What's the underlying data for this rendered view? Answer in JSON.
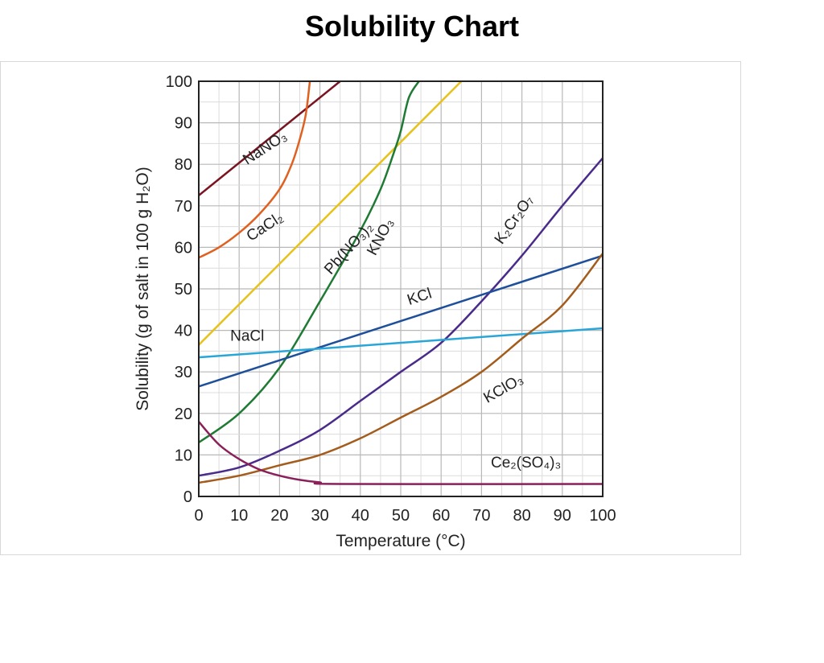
{
  "title": "Solubility Chart",
  "chart_data": {
    "type": "line",
    "xlabel": "Temperature (°C)",
    "ylabel": "Solubility (g of salt in 100 g H₂O)",
    "xlim": [
      0,
      100
    ],
    "ylim": [
      0,
      100
    ],
    "x_ticks": [
      "0",
      "10",
      "20",
      "30",
      "40",
      "50",
      "60",
      "70",
      "80",
      "90",
      "100"
    ],
    "y_ticks": [
      "0",
      "10",
      "20",
      "30",
      "40",
      "50",
      "60",
      "70",
      "80",
      "90",
      "100"
    ],
    "grid": true,
    "series": [
      {
        "name": "NaNO₃",
        "color": "#7a1420",
        "points": [
          [
            0,
            72.5
          ],
          [
            35,
            100
          ]
        ],
        "label": "NaNO₃",
        "label_at": [
          17,
          83
        ],
        "label_angle": -33
      },
      {
        "name": "CaCl₂",
        "color": "#e06020",
        "points": [
          [
            0,
            57.5
          ],
          [
            5,
            60
          ],
          [
            10,
            63.5
          ],
          [
            15,
            68
          ],
          [
            20,
            74
          ],
          [
            23,
            80
          ],
          [
            25,
            86
          ],
          [
            26.5,
            92
          ],
          [
            27.5,
            100
          ]
        ],
        "label": "CaCl₂",
        "label_at": [
          17,
          64
        ],
        "label_angle": -33
      },
      {
        "name": "Pb(NO₃)₂",
        "color": "#e8c21a",
        "points": [
          [
            0,
            36.5
          ],
          [
            65,
            100
          ]
        ],
        "label": "Pb(NO₃)₂",
        "label_at": [
          38,
          59
        ],
        "label_angle": -48
      },
      {
        "name": "KNO₃",
        "color": "#1f7a34",
        "points": [
          [
            0,
            13
          ],
          [
            10,
            20
          ],
          [
            20,
            31
          ],
          [
            30,
            47
          ],
          [
            40,
            64
          ],
          [
            45,
            74
          ],
          [
            48,
            82
          ],
          [
            50,
            88
          ],
          [
            52,
            96
          ],
          [
            54.5,
            100
          ]
        ],
        "label": "KNO₃",
        "label_at": [
          46,
          62
        ],
        "label_angle": -62
      },
      {
        "name": "K₂Cr₂O₇",
        "color": "#4a2a8a",
        "points": [
          [
            0,
            5
          ],
          [
            10,
            7
          ],
          [
            20,
            11
          ],
          [
            30,
            16
          ],
          [
            40,
            23
          ],
          [
            50,
            30
          ],
          [
            60,
            37
          ],
          [
            70,
            47
          ],
          [
            80,
            58
          ],
          [
            90,
            70
          ],
          [
            100,
            81.5
          ]
        ],
        "label": "K₂Cr₂O₇",
        "label_at": [
          79,
          66
        ],
        "label_angle": -55
      },
      {
        "name": "KCl",
        "color": "#1e4f9a",
        "points": [
          [
            0,
            26.5
          ],
          [
            100,
            58
          ]
        ],
        "label": "KCl",
        "label_at": [
          55,
          47
        ],
        "label_angle": -18
      },
      {
        "name": "NaCl",
        "color": "#29a6d8",
        "points": [
          [
            0,
            33.5
          ],
          [
            100,
            40.5
          ]
        ],
        "label": "NaCl",
        "label_at": [
          12,
          37.5
        ],
        "label_angle": 0
      },
      {
        "name": "KClO₃",
        "color": "#a35c1c",
        "points": [
          [
            0,
            3.3
          ],
          [
            10,
            5
          ],
          [
            20,
            7.5
          ],
          [
            30,
            10
          ],
          [
            40,
            14
          ],
          [
            50,
            19
          ],
          [
            60,
            24
          ],
          [
            70,
            30
          ],
          [
            80,
            38
          ],
          [
            90,
            46
          ],
          [
            100,
            58.5
          ]
        ],
        "label": "KClO₃",
        "label_at": [
          76,
          25
        ],
        "label_angle": -30
      },
      {
        "name": "Ce₂(SO₄)₃",
        "color": "#8a1f5a",
        "points": [
          [
            0,
            18
          ],
          [
            5,
            12.5
          ],
          [
            10,
            9
          ],
          [
            15,
            6.5
          ],
          [
            20,
            5
          ],
          [
            25,
            4
          ],
          [
            30,
            3.4
          ],
          [
            35,
            3
          ],
          [
            100,
            3
          ]
        ],
        "label": "Ce₂(SO₄)₃",
        "label_at": [
          81,
          7
        ],
        "label_angle": 0
      }
    ]
  }
}
